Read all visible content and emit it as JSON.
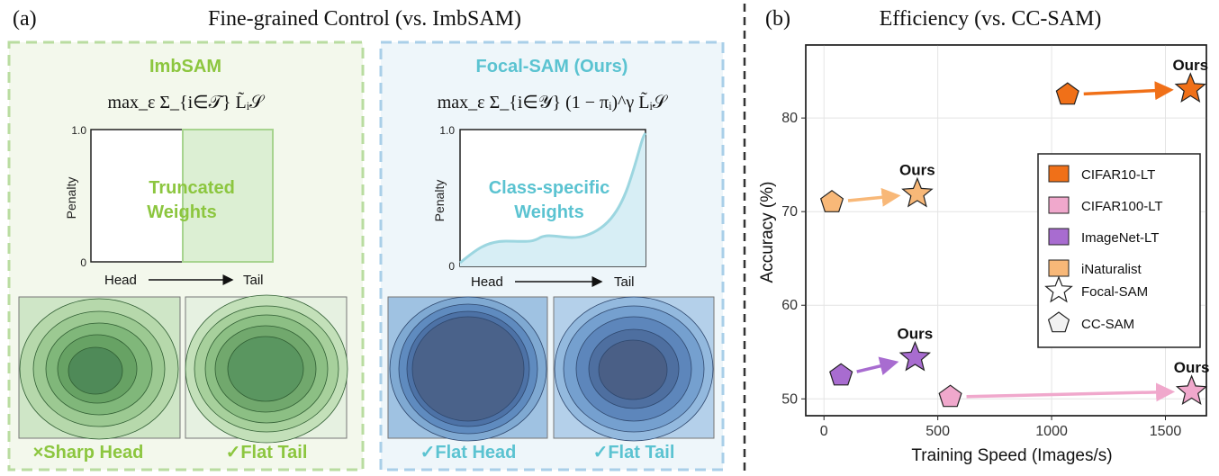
{
  "panel_a": {
    "label": "(a)",
    "title": "Fine-grained Control (vs. ImbSAM)",
    "imbsam": {
      "name": "ImbSAM",
      "formula": "max_ε Σ_{i∈𝒯} L̃ᵢ𝒮",
      "plot_ylabel": "Penalty",
      "plot_ytick_top": "1.0",
      "plot_ytick_bottom": "0",
      "plot_xstart": "Head",
      "plot_xend": "Tail",
      "overlay_line1": "Truncated",
      "overlay_line2": "Weights",
      "caption_left": "×Sharp Head",
      "caption_right": "✓Flat Tail"
    },
    "focal": {
      "name": "Focal-SAM (Ours)",
      "formula": "max_ε Σ_{i∈𝒴} (1 − πᵢ)^γ L̃ᵢ𝒮",
      "plot_ylabel": "Penalty",
      "plot_ytick_top": "1.0",
      "plot_ytick_bottom": "0",
      "plot_xstart": "Head",
      "plot_xend": "Tail",
      "overlay_line1": "Class-specific",
      "overlay_line2": "Weights",
      "caption_left": "✓Flat Head",
      "caption_right": "✓Flat Tail"
    },
    "colors": {
      "imbsam_accent": "#8cc63f",
      "imbsam_border": "#b9dca0",
      "imbsam_bg": "#f3f8ec",
      "focal_accent": "#5bc3d1",
      "focal_border": "#a9cfe8",
      "focal_bg": "#eef6fa"
    }
  },
  "chart_data": {
    "type": "scatter",
    "panel_label": "(b)",
    "title": "Efficiency (vs. CC-SAM)",
    "xlabel": "Training Speed (Images/s)",
    "ylabel": "Accuracy (%)",
    "xlim": [
      -80,
      1680
    ],
    "ylim": [
      48.2,
      87.8
    ],
    "xticks": [
      0,
      500,
      1000,
      1500
    ],
    "yticks": [
      50,
      60,
      70,
      80
    ],
    "grid": true,
    "legend_position": "right",
    "series": [
      {
        "name": "CIFAR10-LT",
        "color": "#f07018",
        "cc_sam": [
          1070,
          82.5
        ],
        "focal_sam": [
          1610,
          83.1
        ]
      },
      {
        "name": "CIFAR100-LT",
        "color": "#f0a8cc",
        "cc_sam": [
          555,
          50.2
        ],
        "focal_sam": [
          1615,
          50.8
        ]
      },
      {
        "name": "ImageNet-LT",
        "color": "#a86cd0",
        "cc_sam": [
          75,
          52.5
        ],
        "focal_sam": [
          400,
          54.4
        ]
      },
      {
        "name": "iNaturalist",
        "color": "#f8b878",
        "cc_sam": [
          35,
          71.0
        ],
        "focal_sam": [
          410,
          71.9
        ]
      }
    ],
    "markers": [
      {
        "name": "Focal-SAM",
        "shape": "star"
      },
      {
        "name": "CC-SAM",
        "shape": "pentagon"
      }
    ],
    "point_label": "Ours"
  }
}
